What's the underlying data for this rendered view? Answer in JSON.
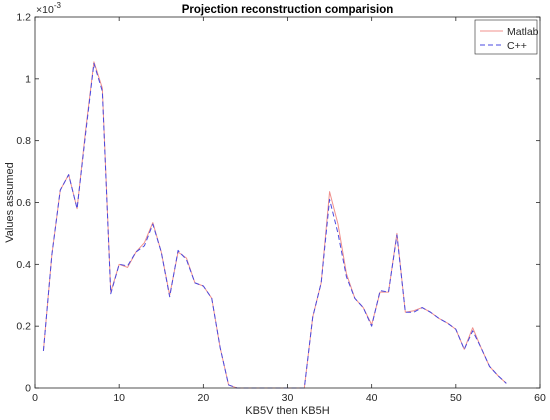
{
  "chart_data": {
    "type": "line",
    "title": "Projection reconstruction comparision",
    "xlabel": "KB5V then KB5H",
    "ylabel": "Values assumed",
    "exponent_label": "×10",
    "exponent_power": "-3",
    "xlim": [
      0,
      60
    ],
    "ylim": [
      0,
      0.0012
    ],
    "xticks": [
      0,
      10,
      20,
      30,
      40,
      50,
      60
    ],
    "yticks": [
      0,
      0.0002,
      0.0004,
      0.0006,
      0.0008,
      0.001,
      0.0012
    ],
    "ytick_labels": [
      "0",
      "0.2",
      "0.4",
      "0.6",
      "0.8",
      "1",
      "1.2"
    ],
    "grid": false,
    "legend_position": "top-right",
    "x": [
      1,
      2,
      3,
      4,
      5,
      6,
      7,
      8,
      9,
      10,
      11,
      12,
      13,
      14,
      15,
      16,
      17,
      18,
      19,
      20,
      21,
      22,
      23,
      24,
      25,
      26,
      27,
      28,
      29,
      30,
      31,
      32,
      33,
      34,
      35,
      36,
      37,
      38,
      39,
      40,
      41,
      42,
      43,
      44,
      45,
      46,
      47,
      48,
      49,
      50,
      51,
      52,
      53,
      54,
      55,
      56
    ],
    "series": [
      {
        "name": "Matlab",
        "color": "#f0908c",
        "dash": "solid",
        "values": [
          0.00012,
          0.00043,
          0.00064,
          0.00069,
          0.00058,
          0.00083,
          0.001055,
          0.00097,
          0.00031,
          0.0004,
          0.00039,
          0.00044,
          0.00047,
          0.000535,
          0.00044,
          0.0003,
          0.00044,
          0.00042,
          0.00034,
          0.00033,
          0.00029,
          0.00013,
          1e-05,
          0.0,
          0.0,
          0.0,
          0.0,
          0.0,
          0.0,
          0.0,
          0.0,
          0.0,
          0.00023,
          0.00034,
          0.000635,
          0.00053,
          0.00037,
          0.00029,
          0.00026,
          0.000205,
          0.00031,
          0.00031,
          0.0005,
          0.000245,
          0.00025,
          0.00026,
          0.000245,
          0.000225,
          0.00021,
          0.00019,
          0.000125,
          0.000195,
          0.00013,
          7e-05,
          4e-05,
          1.5e-05
        ]
      },
      {
        "name": "C++",
        "color": "#4a4ae0",
        "dash": "dashed",
        "values": [
          0.00012,
          0.00043,
          0.00064,
          0.00069,
          0.00058,
          0.00082,
          0.00105,
          0.00096,
          0.000305,
          0.0004,
          0.000395,
          0.00044,
          0.00046,
          0.00053,
          0.00044,
          0.000295,
          0.000445,
          0.000415,
          0.00034,
          0.00033,
          0.00029,
          0.00013,
          1e-05,
          0.0,
          0.0,
          0.0,
          0.0,
          0.0,
          0.0,
          0.0,
          0.0,
          0.0,
          0.00023,
          0.00034,
          0.00061,
          0.0005,
          0.00036,
          0.00029,
          0.00026,
          0.0002,
          0.000315,
          0.00031,
          0.000495,
          0.000245,
          0.000245,
          0.00026,
          0.000245,
          0.000225,
          0.00021,
          0.00019,
          0.000125,
          0.000185,
          0.00013,
          7e-05,
          4e-05,
          1.5e-05
        ]
      }
    ]
  }
}
